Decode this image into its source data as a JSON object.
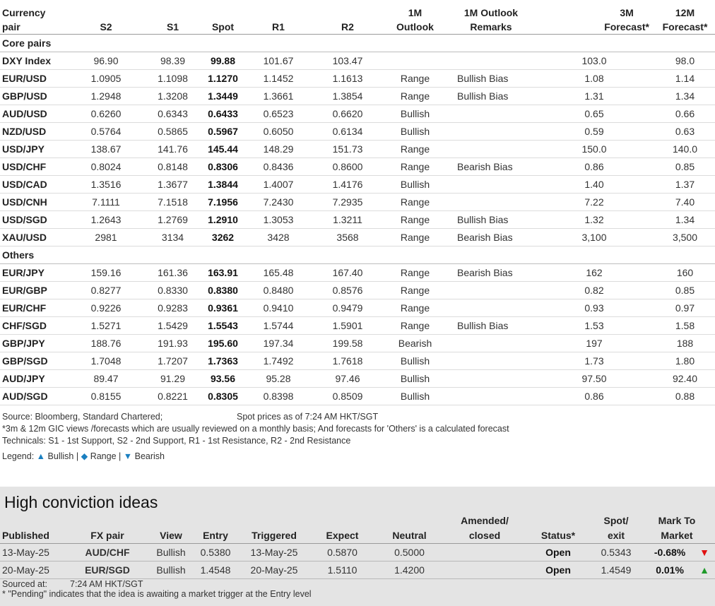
{
  "fx_table": {
    "headers": {
      "pair_line1": "Currency",
      "pair_line2": "pair",
      "s2": "S2",
      "s1": "S1",
      "spot": "Spot",
      "r1": "R1",
      "r2": "R2",
      "outlook_line1": "1M",
      "outlook_line2": "Outlook",
      "remarks_line1": "1M Outlook",
      "remarks_line2": "Remarks",
      "f3m_line1": "3M",
      "f3m_line2": "Forecast*",
      "f12m_line1": "12M",
      "f12m_line2": "Forecast*"
    },
    "section_core": "Core pairs",
    "section_others": "Others",
    "core_rows": [
      {
        "pair": "DXY Index",
        "s2": "96.90",
        "s1": "98.39",
        "spot": "99.88",
        "r1": "101.67",
        "r2": "103.47",
        "outlook": "",
        "remarks": "",
        "f3m": "103.0",
        "f12m": "98.0"
      },
      {
        "pair": "EUR/USD",
        "s2": "1.0905",
        "s1": "1.1098",
        "spot": "1.1270",
        "r1": "1.1452",
        "r2": "1.1613",
        "outlook": "Range",
        "remarks": "Bullish Bias",
        "f3m": "1.08",
        "f12m": "1.14"
      },
      {
        "pair": "GBP/USD",
        "s2": "1.2948",
        "s1": "1.3208",
        "spot": "1.3449",
        "r1": "1.3661",
        "r2": "1.3854",
        "outlook": "Range",
        "remarks": "Bullish Bias",
        "f3m": "1.31",
        "f12m": "1.34"
      },
      {
        "pair": "AUD/USD",
        "s2": "0.6260",
        "s1": "0.6343",
        "spot": "0.6433",
        "r1": "0.6523",
        "r2": "0.6620",
        "outlook": "Bullish",
        "remarks": "",
        "f3m": "0.65",
        "f12m": "0.66"
      },
      {
        "pair": "NZD/USD",
        "s2": "0.5764",
        "s1": "0.5865",
        "spot": "0.5967",
        "r1": "0.6050",
        "r2": "0.6134",
        "outlook": "Bullish",
        "remarks": "",
        "f3m": "0.59",
        "f12m": "0.63"
      },
      {
        "pair": "USD/JPY",
        "s2": "138.67",
        "s1": "141.76",
        "spot": "145.44",
        "r1": "148.29",
        "r2": "151.73",
        "outlook": "Range",
        "remarks": "",
        "f3m": "150.0",
        "f12m": "140.0"
      },
      {
        "pair": "USD/CHF",
        "s2": "0.8024",
        "s1": "0.8148",
        "spot": "0.8306",
        "r1": "0.8436",
        "r2": "0.8600",
        "outlook": "Range",
        "remarks": "Bearish Bias",
        "f3m": "0.86",
        "f12m": "0.85"
      },
      {
        "pair": "USD/CAD",
        "s2": "1.3516",
        "s1": "1.3677",
        "spot": "1.3844",
        "r1": "1.4007",
        "r2": "1.4176",
        "outlook": "Bullish",
        "remarks": "",
        "f3m": "1.40",
        "f12m": "1.37"
      },
      {
        "pair": "USD/CNH",
        "s2": "7.1111",
        "s1": "7.1518",
        "spot": "7.1956",
        "r1": "7.2430",
        "r2": "7.2935",
        "outlook": "Range",
        "remarks": "",
        "f3m": "7.22",
        "f12m": "7.40"
      },
      {
        "pair": "USD/SGD",
        "s2": "1.2643",
        "s1": "1.2769",
        "spot": "1.2910",
        "r1": "1.3053",
        "r2": "1.3211",
        "outlook": "Range",
        "remarks": "Bullish Bias",
        "f3m": "1.32",
        "f12m": "1.34"
      },
      {
        "pair": "XAU/USD",
        "s2": "2981",
        "s1": "3134",
        "spot": "3262",
        "r1": "3428",
        "r2": "3568",
        "outlook": "Range",
        "remarks": "Bearish Bias",
        "f3m": "3,100",
        "f12m": "3,500"
      }
    ],
    "other_rows": [
      {
        "pair": "EUR/JPY",
        "s2": "159.16",
        "s1": "161.36",
        "spot": "163.91",
        "r1": "165.48",
        "r2": "167.40",
        "outlook": "Range",
        "remarks": "Bearish Bias",
        "f3m": "162",
        "f12m": "160"
      },
      {
        "pair": "EUR/GBP",
        "s2": "0.8277",
        "s1": "0.8330",
        "spot": "0.8380",
        "r1": "0.8480",
        "r2": "0.8576",
        "outlook": "Range",
        "remarks": "",
        "f3m": "0.82",
        "f12m": "0.85"
      },
      {
        "pair": "EUR/CHF",
        "s2": "0.9226",
        "s1": "0.9283",
        "spot": "0.9361",
        "r1": "0.9410",
        "r2": "0.9479",
        "outlook": "Range",
        "remarks": "",
        "f3m": "0.93",
        "f12m": "0.97"
      },
      {
        "pair": "CHF/SGD",
        "s2": "1.5271",
        "s1": "1.5429",
        "spot": "1.5543",
        "r1": "1.5744",
        "r2": "1.5901",
        "outlook": "Range",
        "remarks": "Bullish Bias",
        "f3m": "1.53",
        "f12m": "1.58"
      },
      {
        "pair": "GBP/JPY",
        "s2": "188.76",
        "s1": "191.93",
        "spot": "195.60",
        "r1": "197.34",
        "r2": "199.58",
        "outlook": "Bearish",
        "remarks": "",
        "f3m": "197",
        "f12m": "188"
      },
      {
        "pair": "GBP/SGD",
        "s2": "1.7048",
        "s1": "1.7207",
        "spot": "1.7363",
        "r1": "1.7492",
        "r2": "1.7618",
        "outlook": "Bullish",
        "remarks": "",
        "f3m": "1.73",
        "f12m": "1.80"
      },
      {
        "pair": "AUD/JPY",
        "s2": "89.47",
        "s1": "91.29",
        "spot": "93.56",
        "r1": "95.28",
        "r2": "97.46",
        "outlook": "Bullish",
        "remarks": "",
        "f3m": "97.50",
        "f12m": "92.40"
      },
      {
        "pair": "AUD/SGD",
        "s2": "0.8155",
        "s1": "0.8221",
        "spot": "0.8305",
        "r1": "0.8398",
        "r2": "0.8509",
        "outlook": "Bullish",
        "remarks": "",
        "f3m": "0.86",
        "f12m": "0.88"
      }
    ]
  },
  "notes": {
    "source": "Source: Bloomberg, Standard Chartered;",
    "spot_time": "Spot prices as of 7:24 AM HKT/SGT",
    "forecast_note": "*3m & 12m GIC views /forecasts which are usually reviewed on a monthly basis; And forecasts for 'Others' is a calculated forecast",
    "technicals": "Technicals: S1 - 1st Support, S2 - 2nd Support, R1 - 1st Resistance, R2 - 2nd Resistance",
    "legend_label": "Legend:",
    "legend_bullish": "Bullish",
    "legend_range": "Range",
    "legend_bearish": "Bearish",
    "legend_sep": "|"
  },
  "hci": {
    "title": "High conviction ideas",
    "headers": {
      "published": "Published",
      "fx_pair": "FX pair",
      "view": "View",
      "entry": "Entry",
      "triggered": "Triggered",
      "expect": "Expect",
      "neutral": "Neutral",
      "amended_line1": "Amended/",
      "amended_line2": "closed",
      "status": "Status*",
      "spot_line1": "Spot/",
      "spot_line2": "exit",
      "mtm_line1": "Mark To",
      "mtm_line2": "Market"
    },
    "rows": [
      {
        "published": "13-May-25",
        "fx_pair": "AUD/CHF",
        "view": "Bullish",
        "entry": "0.5380",
        "triggered": "13-May-25",
        "expect": "0.5870",
        "neutral": "0.5000",
        "amended": "",
        "status": "Open",
        "spot_exit": "0.5343",
        "mtm": "-0.68%",
        "arrow": "down"
      },
      {
        "published": "20-May-25",
        "fx_pair": "EUR/SGD",
        "view": "Bullish",
        "entry": "1.4548",
        "triggered": "20-May-25",
        "expect": "1.5110",
        "neutral": "1.4200",
        "amended": "",
        "status": "Open",
        "spot_exit": "1.4549",
        "mtm": "0.01%",
        "arrow": "up"
      }
    ],
    "sourced_label": "Sourced at:",
    "sourced_time": "7:24 AM HKT/SGT",
    "pending_note": "* \"Pending\" indicates that the idea is awaiting a market trigger at the Entry level"
  },
  "colors": {
    "range": "#f2a900",
    "bullish": "#2e8b12",
    "bearish": "#d00000",
    "panel_bg": "#e4e4e4",
    "arrow_up": "#1f9a2a",
    "arrow_down": "#e01010"
  }
}
